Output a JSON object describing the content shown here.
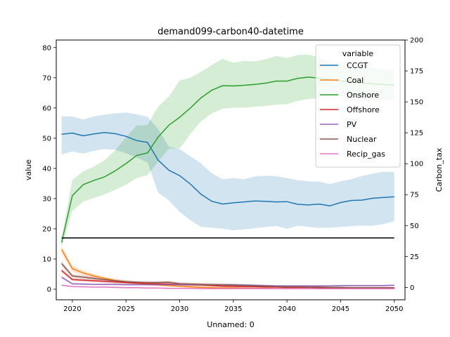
{
  "chart_data": {
    "type": "line",
    "title": "demand099-carbon40-datetime",
    "xlabel": "Unnamed: 0",
    "ylabel": "value",
    "y2label": "Carbon_tax",
    "xlim": [
      2018.5,
      2051
    ],
    "ylim": [
      -3.5,
      82.5
    ],
    "y2lim": [
      -10,
      200
    ],
    "xticks": [
      2020,
      2025,
      2030,
      2035,
      2040,
      2045,
      2050
    ],
    "yticks": [
      0,
      10,
      20,
      30,
      40,
      50,
      60,
      70,
      80
    ],
    "y2ticks": [
      0,
      25,
      50,
      75,
      100,
      125,
      150,
      175,
      200
    ],
    "grid": false,
    "legend": {
      "title": "variable",
      "placement": "top-right"
    },
    "x": [
      2019,
      2020,
      2021,
      2022,
      2023,
      2024,
      2025,
      2026,
      2027,
      2028,
      2029,
      2030,
      2031,
      2032,
      2033,
      2034,
      2035,
      2036,
      2037,
      2038,
      2039,
      2040,
      2041,
      2042,
      2043,
      2044,
      2045,
      2046,
      2047,
      2048,
      2049,
      2050
    ],
    "series": [
      {
        "name": "CCGT",
        "color": "#1f77b4",
        "values": [
          51.3,
          51.7,
          50.8,
          51.4,
          51.9,
          51.5,
          50.6,
          49.2,
          48.6,
          42.7,
          39.4,
          37.6,
          34.8,
          31.4,
          29.1,
          28.2,
          28.6,
          28.9,
          29.2,
          29.1,
          28.9,
          29.0,
          28.1,
          27.9,
          28.2,
          27.6,
          28.7,
          29.4,
          29.5,
          30.1,
          30.4,
          30.6
        ],
        "lower": [
          44.6,
          45.6,
          44.9,
          45.8,
          46.4,
          46.2,
          45.0,
          43.6,
          42.0,
          32.0,
          29.4,
          25.6,
          22.8,
          20.6,
          20.4,
          20.0,
          19.5,
          19.8,
          20.2,
          20.6,
          20.9,
          20.0,
          21.0,
          20.6,
          20.3,
          20.4,
          20.6,
          20.9,
          21.1,
          21.0,
          21.6,
          22.5
        ],
        "upper": [
          57.2,
          57.2,
          56.2,
          57.2,
          57.8,
          58.2,
          58.5,
          57.9,
          57.1,
          53.0,
          47.2,
          46.4,
          44.0,
          41.6,
          38.4,
          36.4,
          36.8,
          36.4,
          37.3,
          37.6,
          37.4,
          36.8,
          36.1,
          35.7,
          35.6,
          34.8,
          35.7,
          36.4,
          37.5,
          38.3,
          38.9,
          38.8
        ]
      },
      {
        "name": "Coal",
        "color": "#ff7f0e",
        "values": [
          13.2,
          6.8,
          5.4,
          4.4,
          3.6,
          2.9,
          2.4,
          2.0,
          1.6,
          1.4,
          1.2,
          1.0,
          0.8,
          0.6,
          0.5,
          0.4,
          0.4,
          0.3,
          0.3,
          0.3,
          0.2,
          0.2,
          0.2,
          0.2,
          0.2,
          0.2,
          0.2,
          0.2,
          0.2,
          0.2,
          0.2,
          0.2
        ],
        "lower": [
          11.8,
          5.8,
          4.6,
          3.7,
          3.0,
          2.4,
          1.9,
          1.5,
          1.2,
          1.0,
          0.8,
          0.6,
          0.4,
          0.3,
          0.2,
          0.2,
          0.2,
          0.1,
          0.1,
          0.1,
          0.1,
          0.1,
          0.1,
          0.1,
          0.1,
          0.1,
          0.1,
          0.1,
          0.1,
          0.1,
          0.1,
          0.1
        ],
        "upper": [
          14.2,
          7.8,
          6.2,
          5.1,
          4.2,
          3.4,
          2.9,
          2.5,
          2.0,
          1.8,
          1.6,
          1.4,
          1.2,
          0.9,
          0.8,
          0.7,
          0.6,
          0.5,
          0.5,
          0.5,
          0.4,
          0.4,
          0.4,
          0.4,
          0.4,
          0.4,
          0.4,
          0.4,
          0.4,
          0.4,
          0.4,
          0.4
        ]
      },
      {
        "name": "Onshore",
        "color": "#2ca02c",
        "values": [
          15.5,
          31.0,
          34.6,
          36.0,
          37.2,
          39.2,
          41.6,
          44.3,
          45.1,
          50.4,
          54.3,
          56.9,
          60.0,
          63.4,
          65.9,
          67.4,
          67.3,
          67.5,
          67.8,
          68.2,
          68.9,
          68.9,
          69.8,
          70.2,
          69.9,
          69.4,
          68.9,
          68.6,
          68.3,
          68.0,
          67.8,
          67.6
        ],
        "lower": [
          14.0,
          25.9,
          29.0,
          30.2,
          31.4,
          32.9,
          34.6,
          36.8,
          37.8,
          42.2,
          46.6,
          46.6,
          51.4,
          55.6,
          58.2,
          59.8,
          60.1,
          60.1,
          60.4,
          60.7,
          61.1,
          61.3,
          62.3,
          63.0,
          63.2,
          63.5,
          63.6,
          63.5,
          63.2,
          62.9,
          62.8,
          62.6
        ],
        "upper": [
          17.0,
          36.2,
          39.0,
          40.6,
          42.7,
          46.0,
          50.3,
          54.2,
          54.4,
          60.5,
          63.8,
          69.1,
          70.0,
          72.0,
          74.2,
          76.3,
          75.0,
          75.6,
          75.4,
          76.1,
          77.2,
          76.5,
          77.5,
          77.7,
          76.8,
          75.3,
          74.2,
          73.9,
          73.4,
          73.2,
          72.8,
          72.7
        ]
      },
      {
        "name": "Offshore",
        "color": "#d62728",
        "values": [
          6.2,
          3.2,
          3.0,
          2.8,
          2.6,
          2.4,
          2.2,
          2.0,
          1.9,
          1.8,
          1.7,
          1.6,
          1.5,
          1.4,
          1.2,
          1.0,
          0.9,
          0.8,
          0.8,
          0.7,
          0.7,
          0.6,
          0.6,
          0.6,
          0.5,
          0.5,
          0.5,
          0.5,
          0.5,
          0.5,
          0.5,
          0.5
        ],
        "lower": [
          5.5,
          2.7,
          2.5,
          2.3,
          2.1,
          1.9,
          1.7,
          1.5,
          1.4,
          1.3,
          1.2,
          1.1,
          1.0,
          0.9,
          0.8,
          0.6,
          0.5,
          0.5,
          0.5,
          0.4,
          0.4,
          0.3,
          0.3,
          0.3,
          0.3,
          0.3,
          0.3,
          0.3,
          0.3,
          0.3,
          0.3,
          0.3
        ],
        "upper": [
          6.9,
          3.7,
          3.5,
          3.3,
          3.1,
          2.9,
          2.7,
          2.5,
          2.4,
          2.3,
          2.2,
          2.1,
          2.0,
          1.9,
          1.6,
          1.4,
          1.3,
          1.1,
          1.1,
          1.0,
          1.0,
          0.9,
          0.9,
          0.9,
          0.8,
          0.8,
          0.8,
          0.8,
          0.8,
          0.8,
          0.8,
          0.8
        ]
      },
      {
        "name": "PV",
        "color": "#9467bd",
        "values": [
          4.0,
          1.8,
          1.7,
          1.6,
          1.6,
          1.6,
          1.5,
          1.5,
          1.5,
          1.5,
          1.5,
          1.5,
          1.5,
          1.5,
          1.5,
          1.5,
          1.5,
          1.4,
          1.3,
          1.2,
          1.1,
          1.1,
          1.1,
          1.1,
          1.1,
          1.1,
          1.2,
          1.2,
          1.2,
          1.2,
          1.2,
          1.3
        ],
        "lower": [
          3.5,
          1.5,
          1.4,
          1.3,
          1.3,
          1.3,
          1.2,
          1.2,
          1.2,
          1.2,
          1.2,
          1.2,
          1.2,
          1.2,
          1.2,
          1.2,
          1.2,
          1.1,
          1.0,
          0.9,
          0.8,
          0.8,
          0.8,
          0.8,
          0.8,
          0.8,
          0.9,
          0.9,
          0.9,
          0.9,
          0.9,
          1.0
        ],
        "upper": [
          4.5,
          2.1,
          2.0,
          1.9,
          1.9,
          1.9,
          1.8,
          1.8,
          1.8,
          1.8,
          1.8,
          1.8,
          1.8,
          1.8,
          1.8,
          1.8,
          1.8,
          1.7,
          1.6,
          1.5,
          1.4,
          1.4,
          1.4,
          1.4,
          1.4,
          1.4,
          1.5,
          1.5,
          1.5,
          1.5,
          1.5,
          1.6
        ]
      },
      {
        "name": "Nuclear",
        "color": "#8c564b",
        "values": [
          8.5,
          4.4,
          4.0,
          3.6,
          3.2,
          2.8,
          2.5,
          2.3,
          2.2,
          2.2,
          2.3,
          1.8,
          1.7,
          1.6,
          1.5,
          1.4,
          1.3,
          1.2,
          1.1,
          1.0,
          0.9,
          0.8,
          0.8,
          0.7,
          0.7,
          0.6,
          0.6,
          0.5,
          0.5,
          0.5,
          0.5,
          0.4
        ],
        "lower": [
          7.6,
          3.8,
          3.4,
          3.0,
          2.7,
          2.3,
          2.0,
          1.8,
          1.7,
          1.7,
          1.8,
          1.3,
          1.2,
          1.1,
          1.0,
          0.9,
          0.8,
          0.7,
          0.7,
          0.6,
          0.5,
          0.5,
          0.5,
          0.4,
          0.4,
          0.3,
          0.3,
          0.3,
          0.3,
          0.3,
          0.3,
          0.2
        ],
        "upper": [
          9.4,
          5.0,
          4.6,
          4.2,
          3.7,
          3.3,
          3.0,
          2.8,
          2.7,
          2.7,
          2.8,
          2.3,
          2.2,
          2.1,
          2.0,
          1.9,
          1.8,
          1.7,
          1.5,
          1.4,
          1.3,
          1.1,
          1.1,
          1.0,
          1.0,
          0.9,
          0.9,
          0.7,
          0.7,
          0.7,
          0.7,
          0.6
        ]
      },
      {
        "name": "Recip_gas",
        "color": "#e377c2",
        "values": [
          1.3,
          0.9,
          0.8,
          0.7,
          0.7,
          0.6,
          0.5,
          0.5,
          0.4,
          0.4,
          0.3,
          0.3,
          0.3,
          0.2,
          0.2,
          0.2,
          0.2,
          0.2,
          0.2,
          0.2,
          0.2,
          0.2,
          0.2,
          0.2,
          0.2,
          0.2,
          0.2,
          0.2,
          0.2,
          0.2,
          0.2,
          0.2
        ],
        "lower": [
          1.0,
          0.7,
          0.6,
          0.5,
          0.5,
          0.4,
          0.3,
          0.3,
          0.2,
          0.2,
          0.1,
          0.1,
          0.1,
          0.1,
          0.1,
          0.1,
          0.1,
          0.1,
          0.1,
          0.1,
          0.1,
          0.1,
          0.1,
          0.1,
          0.1,
          0.1,
          0.1,
          0.1,
          0.1,
          0.1,
          0.1,
          0.1
        ],
        "upper": [
          1.6,
          1.1,
          1.0,
          0.9,
          0.9,
          0.8,
          0.7,
          0.7,
          0.6,
          0.6,
          0.5,
          0.5,
          0.5,
          0.3,
          0.3,
          0.3,
          0.3,
          0.3,
          0.3,
          0.3,
          0.3,
          0.3,
          0.3,
          0.3,
          0.3,
          0.3,
          0.3,
          0.3,
          0.3,
          0.3,
          0.3,
          0.3
        ]
      }
    ],
    "secondary_series": [
      {
        "axis": "right",
        "color": "#000000",
        "x": [
          2019,
          2050
        ],
        "values": [
          40,
          40
        ]
      }
    ]
  }
}
